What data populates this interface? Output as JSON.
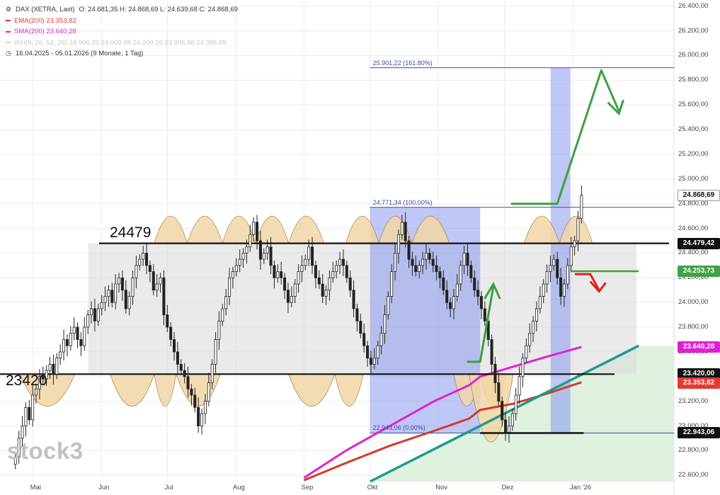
{
  "legend": {
    "symbol": "DAX (XETRA, Last)",
    "ohlc": "O: 24.681,35  H: 24.868,69  L: 24.639,68  C: 24.868,69",
    "ema": "EMA(200)  23.353,82",
    "sma": "SMA(200)  23.640,28",
    "ikh": "IKH(9, 26, 52, 26)  24.996,33  24.003,98  24.200,16  23.905,88  24.386,69",
    "period": "16.04.2025 - 05.01.2026  (9 Monate, 1 Tag)",
    "colors": {
      "ema": "#e53935",
      "sma": "#e020d0",
      "ikh": "#cfcfcf"
    }
  },
  "logo": "stock3",
  "chart_data": {
    "type": "candlestick",
    "ylim": [
      22550,
      26450
    ],
    "y_ticks": [
      "26.400,00",
      "26.200,00",
      "26.000,00",
      "25.800,00",
      "25.600,00",
      "25.400,00",
      "25.200,00",
      "25.000,00",
      "24.800,00",
      "24.600,00",
      "24.400,00",
      "24.200,00",
      "24.000,00",
      "23.800,00",
      "23.600,00",
      "23.400,00",
      "23.200,00",
      "23.000,00",
      "22.800,00",
      "22.600,00"
    ],
    "y_tick_values": [
      26400,
      26200,
      26000,
      25800,
      25600,
      25400,
      25200,
      25000,
      24800,
      24600,
      24400,
      24200,
      24000,
      23800,
      23600,
      23400,
      23200,
      23000,
      22800,
      22600
    ],
    "x_ticks": [
      "Mai",
      "Jun",
      "Jul",
      "Aug",
      "Sep",
      "Okt",
      "Nov",
      "Dez",
      "Jan '26"
    ],
    "x_tick_dates": [
      "2025-05-01",
      "2025-06-01",
      "2025-07-01",
      "2025-08-01",
      "2025-09-01",
      "2025-10-01",
      "2025-11-01",
      "2025-12-01",
      "2026-01-01"
    ],
    "x_range": [
      "2025-04-16",
      "2026-02-16"
    ],
    "candles_close": [
      22750,
      22900,
      23000,
      23150,
      23050,
      23250,
      23300,
      23400,
      23380,
      23450,
      23500,
      23420,
      23550,
      23600,
      23700,
      23650,
      23750,
      23800,
      23700,
      23650,
      23800,
      23900,
      23950,
      23850,
      23950,
      24000,
      24050,
      24100,
      24000,
      24150,
      24200,
      24100,
      23950,
      24050,
      24200,
      24300,
      24350,
      24400,
      24300,
      24250,
      24100,
      24150,
      24200,
      23900,
      23800,
      23700,
      23600,
      23500,
      23450,
      23400,
      23300,
      23250,
      23150,
      23000,
      23100,
      23200,
      23350,
      23500,
      23700,
      23850,
      23950,
      24050,
      24200,
      24250,
      24300,
      24350,
      24400,
      24450,
      24550,
      24650,
      24500,
      24350,
      24400,
      24450,
      24300,
      24200,
      24250,
      24200,
      24100,
      24000,
      24050,
      24150,
      24250,
      24300,
      24350,
      24450,
      24300,
      24200,
      24150,
      24050,
      24100,
      24200,
      24250,
      24300,
      24350,
      24300,
      24200,
      24100,
      23950,
      23850,
      23750,
      23650,
      23550,
      23500,
      23550,
      23650,
      23750,
      23900,
      24050,
      24250,
      24400,
      24550,
      24650,
      24500,
      24350,
      24300,
      24250,
      24300,
      24350,
      24400,
      24350,
      24300,
      24250,
      24200,
      24100,
      24000,
      23950,
      24050,
      24150,
      24300,
      24400,
      24300,
      24200,
      24100,
      24050,
      23950,
      23850,
      23700,
      23500,
      23350,
      23200,
      23050,
      22950,
      23000,
      23100,
      23250,
      23400,
      23550,
      23650,
      23750,
      23850,
      23950,
      24050,
      24150,
      24250,
      24300,
      24350,
      24200,
      24050,
      24150,
      24300,
      24450,
      24500,
      24681,
      24868
    ],
    "ema200": {
      "name": "EMA(200)",
      "x": [
        "2025-09-01",
        "2025-09-20",
        "2025-10-10",
        "2025-10-30",
        "2025-11-15",
        "2025-11-20",
        "2025-12-05",
        "2025-12-20",
        "2026-01-05"
      ],
      "y": [
        22560,
        22700,
        22840,
        22960,
        23060,
        23130,
        23180,
        23260,
        23354
      ]
    },
    "sma200": {
      "name": "SMA(200)",
      "x": [
        "2025-09-01",
        "2025-09-20",
        "2025-10-10",
        "2025-10-30",
        "2025-11-15",
        "2025-11-20",
        "2025-12-05",
        "2025-12-20",
        "2026-01-05"
      ],
      "y": [
        22580,
        22800,
        23000,
        23200,
        23330,
        23400,
        23480,
        23560,
        23640
      ]
    },
    "fib_levels": [
      {
        "label": "25.901,22 (161.80%)",
        "value": 25901.22
      },
      {
        "label": "24.771,34 (100.00%)",
        "value": 24771.34
      },
      {
        "label": "22.943,06 (0.00%)",
        "value": 22943.06
      }
    ],
    "levels": [
      {
        "label": "24479",
        "value": 24479
      },
      {
        "label": "23420",
        "value": 23420
      }
    ],
    "price_badges": [
      {
        "label": "24.868,69",
        "value": 24868.69,
        "bg": "#ffffff",
        "fg": "#111111",
        "border": "#999999"
      },
      {
        "label": "24.479,42",
        "value": 24479.42,
        "bg": "#111111",
        "fg": "#ffffff"
      },
      {
        "label": "24.253,73",
        "value": 24253.73,
        "bg": "#43a047",
        "fg": "#ffffff"
      },
      {
        "label": "23.640,28",
        "value": 23640.28,
        "bg": "#e020d0",
        "fg": "#ffffff"
      },
      {
        "label": "23.420,00",
        "value": 23420.0,
        "bg": "#111111",
        "fg": "#ffffff"
      },
      {
        "label": "23.353,82",
        "value": 23353.82,
        "bg": "#e53935",
        "fg": "#ffffff"
      },
      {
        "label": "22.943,06",
        "value": 22943.06,
        "bg": "#111111",
        "fg": "#ffffff"
      }
    ]
  }
}
